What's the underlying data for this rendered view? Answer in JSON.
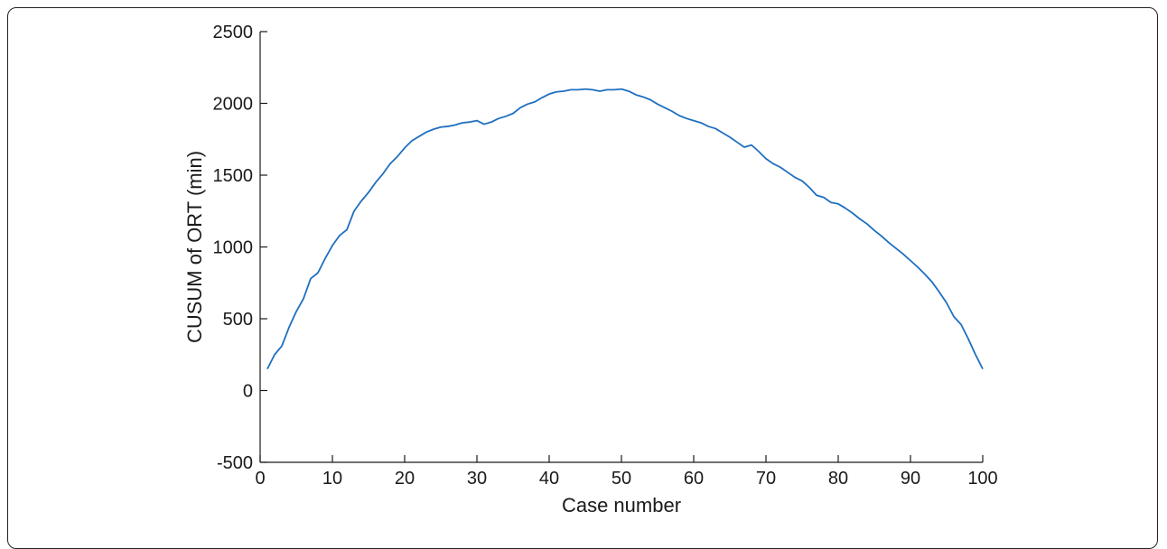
{
  "chart_data": {
    "type": "line",
    "title": "",
    "xlabel": "Case number",
    "ylabel": "CUSUM of ORT (min)",
    "xlim": [
      0,
      100
    ],
    "ylim": [
      -500,
      2500
    ],
    "xticks": [
      0,
      10,
      20,
      30,
      40,
      50,
      60,
      70,
      80,
      90,
      100
    ],
    "yticks": [
      -500,
      0,
      500,
      1000,
      1500,
      2000,
      2500
    ],
    "grid": false,
    "line_color": "#1f6fbf",
    "series": [
      {
        "x": [
          1,
          2,
          3,
          4,
          5,
          6,
          7,
          8,
          9,
          10,
          11,
          12,
          13,
          14,
          15,
          16,
          17,
          18,
          19,
          20,
          21,
          22,
          23,
          24,
          25,
          26,
          27,
          28,
          29,
          30,
          31,
          32,
          33,
          34,
          35,
          36,
          37,
          38,
          39,
          40,
          41,
          42,
          43,
          44,
          45,
          46,
          47,
          48,
          49,
          50,
          51,
          52,
          53,
          54,
          55,
          56,
          57,
          58,
          59,
          60,
          61,
          62,
          63,
          64,
          65,
          66,
          67,
          68,
          69,
          70,
          71,
          72,
          73,
          74,
          75,
          76,
          77,
          78,
          79,
          80,
          81,
          82,
          83,
          84,
          85,
          86,
          87,
          88,
          89,
          90,
          91,
          92,
          93,
          94,
          95,
          96,
          97,
          98,
          99,
          100
        ],
        "y": [
          150,
          250,
          310,
          440,
          550,
          640,
          780,
          820,
          920,
          1010,
          1080,
          1120,
          1250,
          1320,
          1380,
          1450,
          1510,
          1580,
          1630,
          1690,
          1740,
          1770,
          1800,
          1820,
          1835,
          1840,
          1850,
          1865,
          1870,
          1880,
          1855,
          1870,
          1895,
          1910,
          1930,
          1970,
          1995,
          2010,
          2040,
          2065,
          2080,
          2085,
          2095,
          2095,
          2100,
          2095,
          2085,
          2095,
          2095,
          2100,
          2085,
          2060,
          2045,
          2025,
          1995,
          1970,
          1945,
          1915,
          1895,
          1880,
          1865,
          1840,
          1825,
          1795,
          1765,
          1730,
          1695,
          1710,
          1665,
          1615,
          1580,
          1555,
          1520,
          1485,
          1460,
          1415,
          1360,
          1345,
          1310,
          1300,
          1270,
          1235,
          1195,
          1160,
          1115,
          1075,
          1030,
          990,
          950,
          905,
          860,
          810,
          755,
          685,
          610,
          515,
          460,
          360,
          250,
          150
        ]
      }
    ]
  }
}
